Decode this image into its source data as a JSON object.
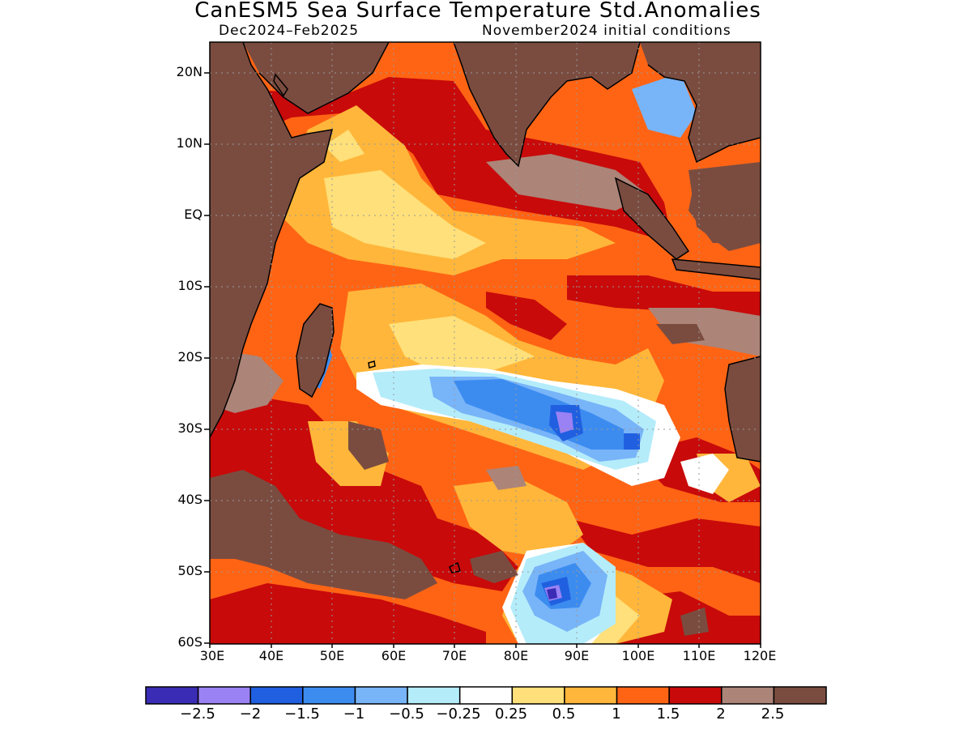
{
  "title": "CanESM5 Sea Surface Temperature Std.Anomalies",
  "subtitle_left": "Dec2024–Feb2025",
  "subtitle_right": "November2024 initial conditions",
  "map": {
    "region": "Indian Ocean",
    "lat_ticks": [
      "20N",
      "10N",
      "EQ",
      "10S",
      "20S",
      "30S",
      "40S",
      "50S",
      "60S"
    ],
    "lon_ticks": [
      "30E",
      "40E",
      "50E",
      "60E",
      "70E",
      "80E",
      "90E",
      "100E",
      "110E",
      "120E"
    ],
    "land_color": "#7a4c40",
    "grid": "dotted"
  },
  "colorbar": {
    "colors": [
      "#3a2cb4",
      "#9a82f4",
      "#2060e0",
      "#3c8cf0",
      "#78b4f8",
      "#b4ecfa",
      "#ffffff",
      "#ffe07a",
      "#ffb63a",
      "#ff6414",
      "#c80a0a",
      "#ac8478",
      "#7a4c40"
    ],
    "labels": [
      "−2.5",
      "−2",
      "−1.5",
      "−1",
      "−0.5",
      "−0.25",
      "0.25",
      "0.5",
      "1",
      "1.5",
      "2",
      "2.5"
    ]
  }
}
